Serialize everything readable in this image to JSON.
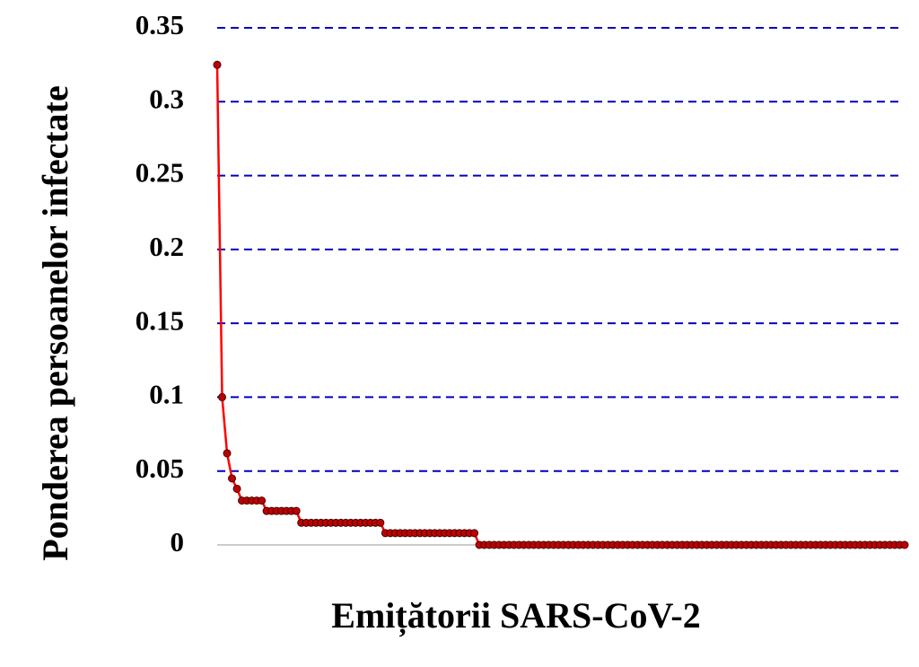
{
  "chart_data": {
    "type": "line",
    "y_label": "Ponderea persoanelor infectate",
    "x_label": "Emițătorii SARS-CoV-2",
    "values": [
      0.325,
      0.1,
      0.062,
      0.045,
      0.038,
      0.03,
      0.03,
      0.03,
      0.03,
      0.03,
      0.023,
      0.023,
      0.023,
      0.023,
      0.023,
      0.023,
      0.023,
      0.015,
      0.015,
      0.015,
      0.015,
      0.015,
      0.015,
      0.015,
      0.015,
      0.015,
      0.015,
      0.015,
      0.015,
      0.015,
      0.015,
      0.015,
      0.015,
      0.015,
      0.008,
      0.008,
      0.008,
      0.008,
      0.008,
      0.008,
      0.008,
      0.008,
      0.008,
      0.008,
      0.008,
      0.008,
      0.008,
      0.008,
      0.008,
      0.008,
      0.008,
      0.008,
      0.008,
      0,
      0,
      0,
      0,
      0,
      0,
      0,
      0,
      0,
      0,
      0,
      0,
      0,
      0,
      0,
      0,
      0,
      0,
      0,
      0,
      0,
      0,
      0,
      0,
      0,
      0,
      0,
      0,
      0,
      0,
      0,
      0,
      0,
      0,
      0,
      0,
      0,
      0,
      0,
      0,
      0,
      0,
      0,
      0,
      0,
      0,
      0,
      0,
      0,
      0,
      0,
      0,
      0,
      0,
      0,
      0,
      0,
      0,
      0,
      0,
      0,
      0,
      0,
      0,
      0,
      0,
      0,
      0,
      0,
      0,
      0,
      0,
      0,
      0,
      0,
      0,
      0,
      0,
      0,
      0,
      0,
      0,
      0,
      0,
      0,
      0,
      0
    ],
    "color": "#ff0000",
    "marker_color": "#c00000",
    "ylim": [
      0,
      0.35
    ],
    "yticks": [
      0,
      0.05,
      0.1,
      0.15,
      0.2,
      0.25,
      0.3,
      0.35
    ],
    "grid": true,
    "grid_color": "#0000c0"
  }
}
